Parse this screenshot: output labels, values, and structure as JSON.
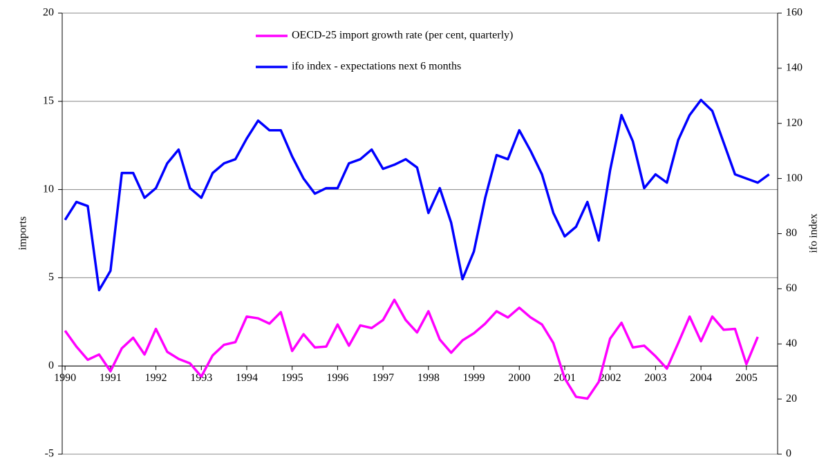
{
  "chart_data": {
    "type": "line",
    "ylabel": "imports",
    "y2label": "ifo index",
    "categories": [
      "1990",
      null,
      null,
      null,
      "1991",
      null,
      null,
      null,
      "1992",
      null,
      null,
      null,
      "1993",
      null,
      null,
      null,
      "1994",
      null,
      null,
      null,
      "1995",
      null,
      null,
      null,
      "1996",
      null,
      null,
      null,
      "1997",
      null,
      null,
      null,
      "1998",
      null,
      null,
      null,
      "1999",
      null,
      null,
      null,
      "2000",
      null,
      null,
      null,
      "2001",
      null,
      null,
      null,
      "2002",
      null,
      null,
      null,
      "2003",
      null,
      null,
      null,
      "2004",
      null,
      null,
      null,
      "2005",
      null,
      null
    ],
    "series": [
      {
        "name": "OECD-25 import growth rate (per cent, quarterly)",
        "color": "#ff00ff",
        "axis": "y",
        "values": [
          2.0,
          1.1,
          0.35,
          0.65,
          -0.3,
          1.0,
          1.6,
          0.65,
          2.1,
          0.8,
          0.4,
          0.15,
          -0.6,
          0.6,
          1.2,
          1.35,
          2.8,
          2.7,
          2.4,
          3.05,
          0.85,
          1.8,
          1.05,
          1.1,
          2.35,
          1.15,
          2.3,
          2.15,
          2.6,
          3.75,
          2.6,
          1.9,
          3.1,
          1.5,
          0.75,
          1.45,
          1.85,
          2.4,
          3.1,
          2.75,
          3.3,
          2.75,
          2.35,
          1.3,
          -0.7,
          -1.75,
          -1.85,
          -0.9,
          1.55,
          2.45,
          1.05,
          1.15,
          0.55,
          -0.15,
          1.3,
          2.8,
          1.4,
          2.8,
          2.05,
          2.1,
          0.1,
          1.65,
          null
        ]
      },
      {
        "name": "ifo index - expectations next 6 months",
        "color": "#0000ff",
        "axis": "y2",
        "values": [
          85,
          91.5,
          90,
          59.5,
          66.5,
          102,
          102,
          93,
          96.5,
          105.5,
          110.5,
          96.5,
          93,
          102,
          105.5,
          107,
          114.5,
          121,
          117.5,
          117.5,
          108,
          100,
          94.5,
          96.5,
          96.5,
          105.5,
          107,
          110.5,
          103.5,
          105,
          107,
          104,
          87.5,
          96.5,
          84,
          63.5,
          73.5,
          93,
          108.5,
          107,
          117.5,
          110,
          101.5,
          87.5,
          79,
          82.5,
          91.5,
          77.5,
          103,
          123,
          113.5,
          96.5,
          101.5,
          98.5,
          114,
          123,
          128.5,
          124.5,
          113,
          101.5,
          100,
          98.5,
          101.5
        ]
      }
    ],
    "ylim": [
      -5,
      20
    ],
    "yticks": [
      -5,
      0,
      5,
      10,
      15,
      20
    ],
    "y2lim": [
      0,
      160
    ],
    "y2ticks": [
      0,
      20,
      40,
      60,
      80,
      100,
      120,
      140,
      160
    ],
    "grid": true,
    "legend": "top"
  }
}
